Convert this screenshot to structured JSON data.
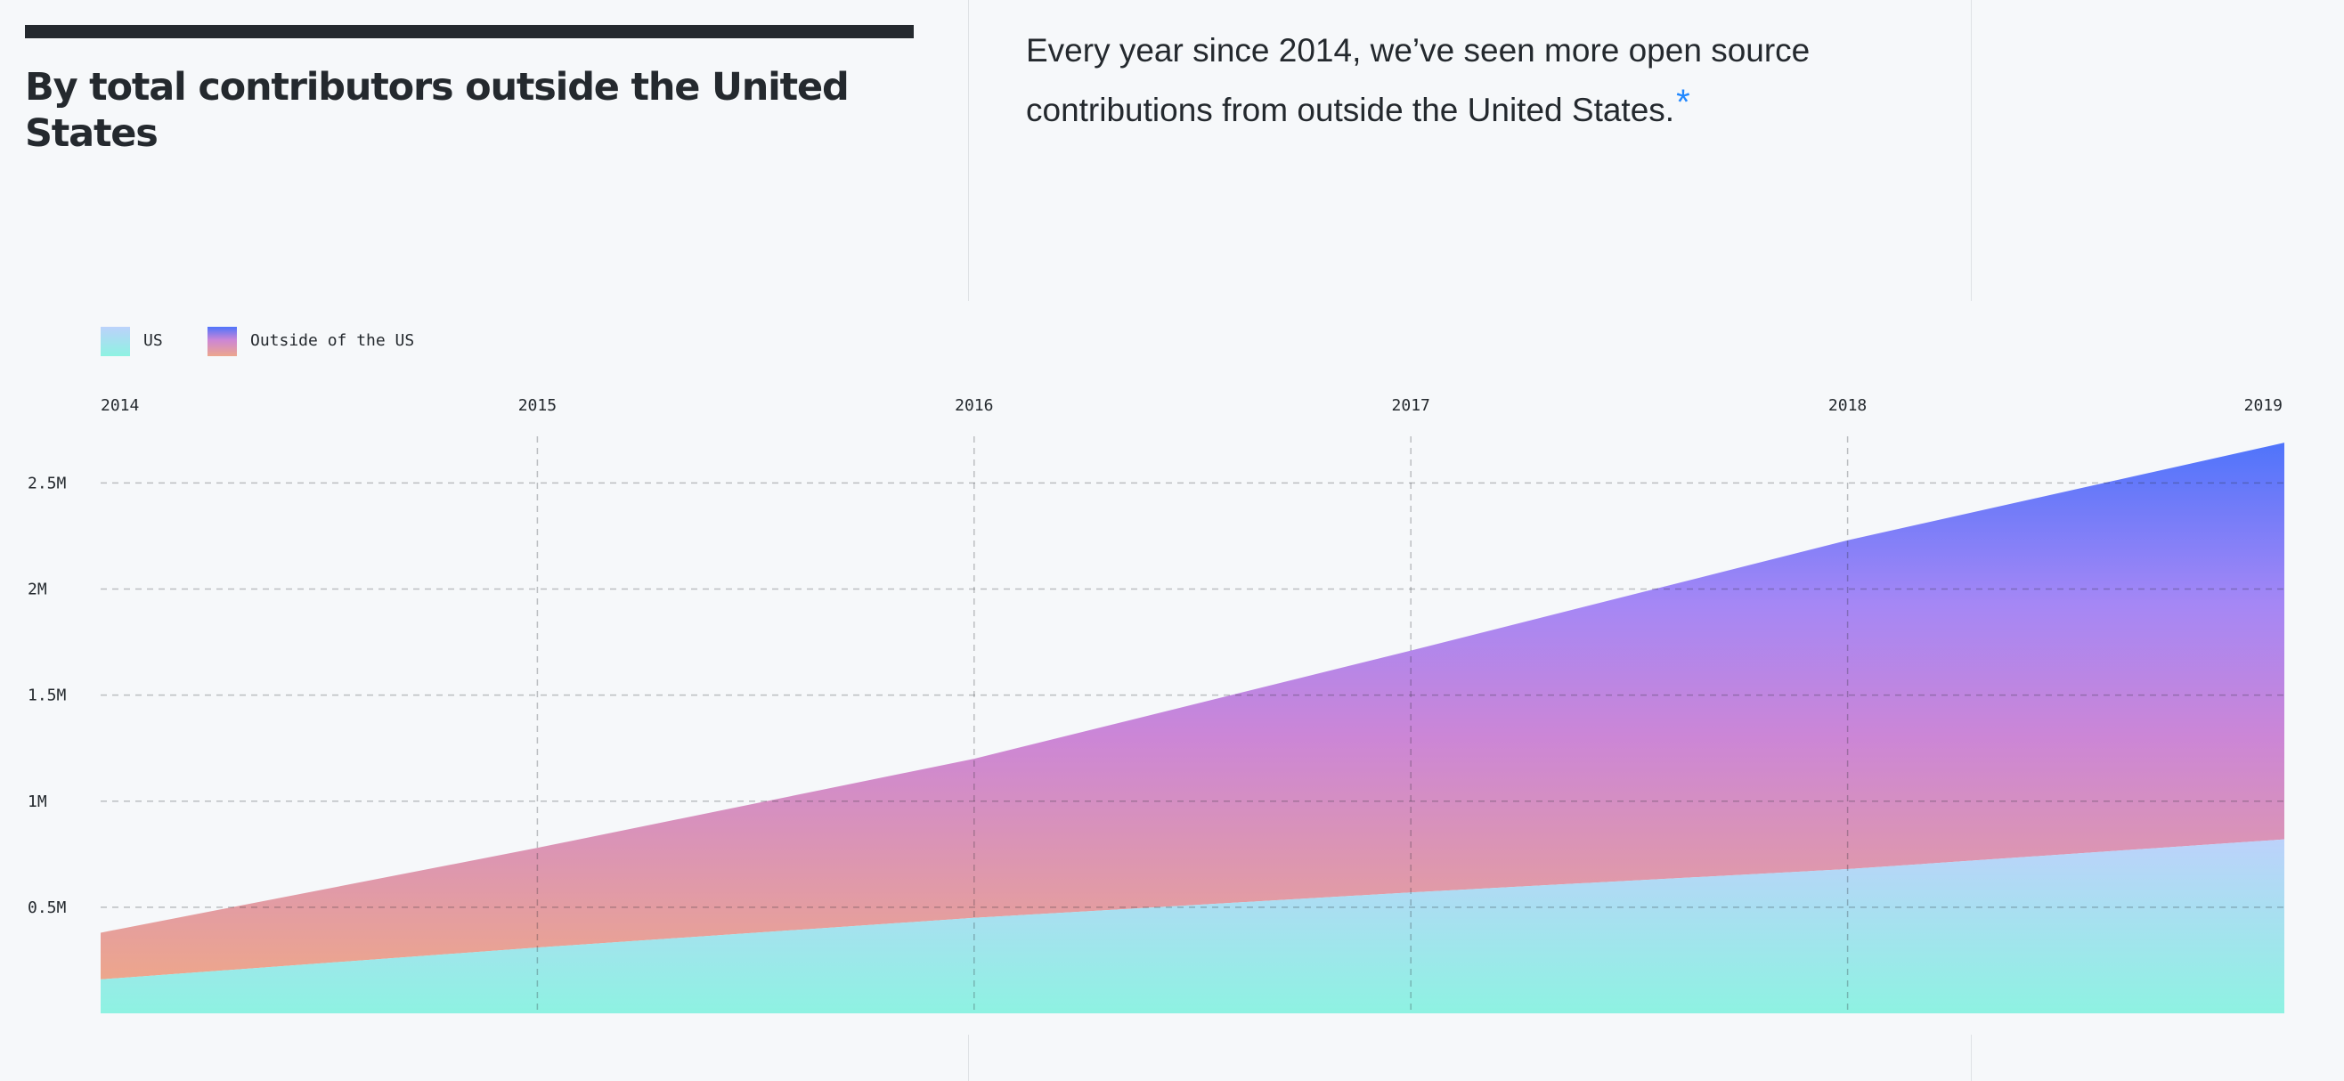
{
  "header": {
    "title": "By total contributors outside the United States",
    "lead": "Every year since 2014, we’ve seen more open source contributions from outside the United States.",
    "footnote_marker": "*"
  },
  "colors": {
    "us_gradient_top": "#bcd2fb",
    "us_gradient_bottom": "#8ef2e2",
    "outside_gradient_top": "#4f74fb",
    "outside_gradient_mid": "#a587f5",
    "outside_gradient_lower": "#cc86d6",
    "outside_gradient_bottom": "#eda68c",
    "title_bar": "#24292e",
    "footnote": "#2188ff"
  },
  "chart_data": {
    "type": "area",
    "stacked": true,
    "x": [
      "2014",
      "2015",
      "2016",
      "2017",
      "2018",
      "2019"
    ],
    "xtick_labels": [
      "2014",
      "2015",
      "2016",
      "2017",
      "2018",
      "2019"
    ],
    "ytick_values": [
      500000,
      1000000,
      1500000,
      2000000,
      2500000
    ],
    "ytick_labels": [
      "0.5M",
      "1M",
      "1.5M",
      "2M",
      "2.5M"
    ],
    "ylim": [
      0,
      2720000
    ],
    "grid": true,
    "legend_position": "top-left",
    "series": [
      {
        "name": "US",
        "values": [
          160000,
          310000,
          450000,
          570000,
          680000,
          820000
        ]
      },
      {
        "name": "Outside of the US",
        "values": [
          220000,
          470000,
          750000,
          1140000,
          1550000,
          1870000
        ]
      }
    ]
  }
}
